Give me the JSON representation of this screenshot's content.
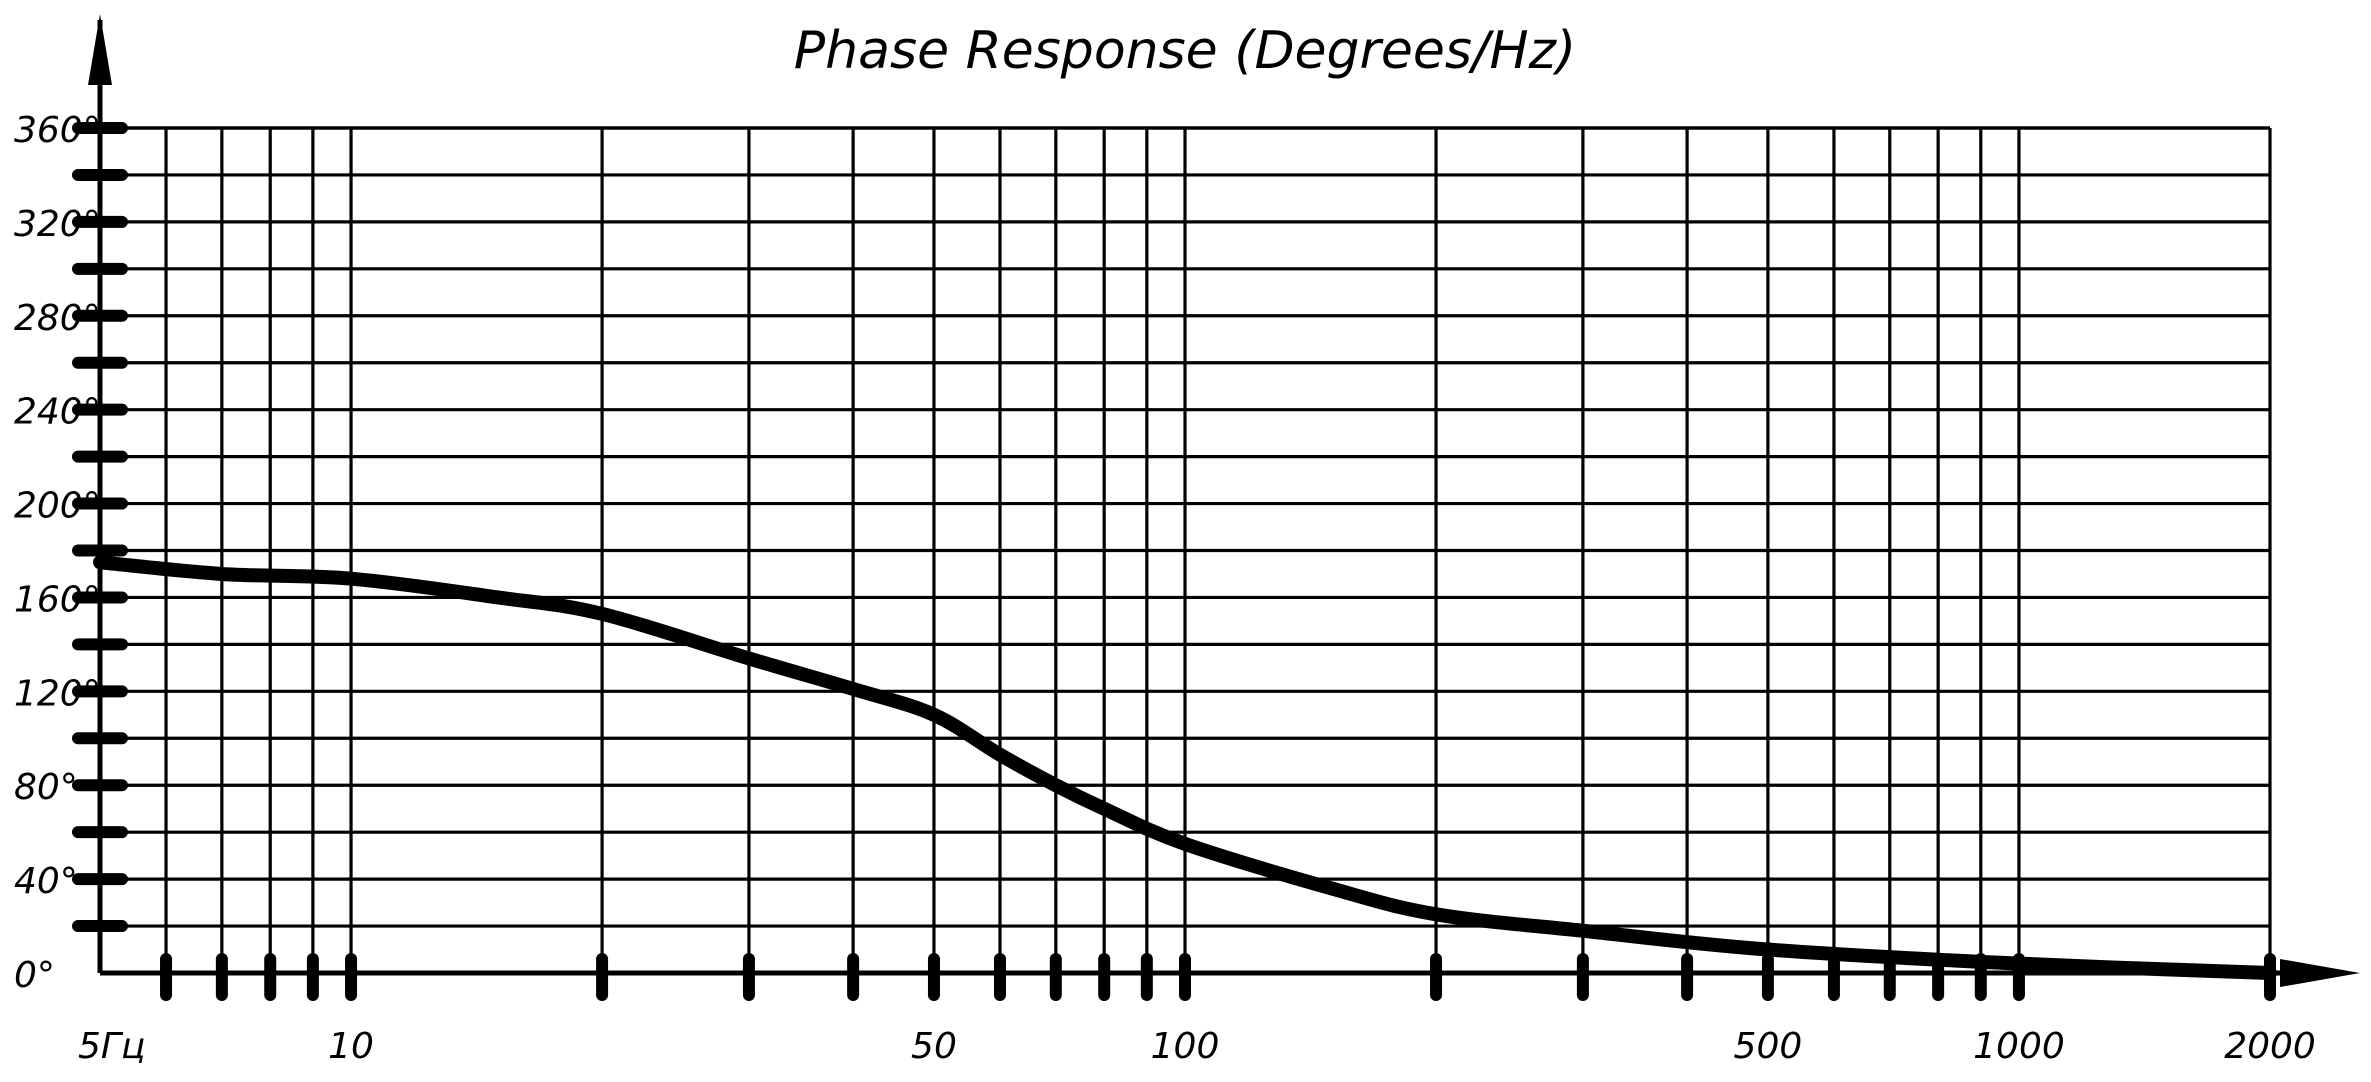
{
  "chart_data": {
    "type": "line",
    "title": "Phase Response (Degrees/Hz)",
    "xscale": "log",
    "xlim": [
      5,
      2000
    ],
    "ylim": [
      0,
      360
    ],
    "grid": true,
    "x_tick_labels": [
      {
        "value": 5,
        "label": "5Гц"
      },
      {
        "value": 10,
        "label": "10"
      },
      {
        "value": 50,
        "label": "50"
      },
      {
        "value": 100,
        "label": "100"
      },
      {
        "value": 500,
        "label": "500"
      },
      {
        "value": 1000,
        "label": "1000"
      },
      {
        "value": 2000,
        "label": "2000"
      }
    ],
    "x_gridlines": [
      6,
      7,
      8,
      9,
      10,
      20,
      30,
      40,
      50,
      60,
      70,
      80,
      90,
      100,
      200,
      300,
      400,
      500,
      600,
      700,
      800,
      900,
      1000
    ],
    "y_tick_labels": [
      {
        "value": 0,
        "label": "0°"
      },
      {
        "value": 40,
        "label": "40°"
      },
      {
        "value": 80,
        "label": "80°"
      },
      {
        "value": 120,
        "label": "120°"
      },
      {
        "value": 160,
        "label": "160°"
      },
      {
        "value": 200,
        "label": "200°"
      },
      {
        "value": 240,
        "label": "240°"
      },
      {
        "value": 280,
        "label": "280°"
      },
      {
        "value": 320,
        "label": "320°"
      },
      {
        "value": 360,
        "label": "360°"
      }
    ],
    "y_gridlines": [
      20,
      40,
      60,
      80,
      100,
      120,
      140,
      160,
      180,
      200,
      220,
      240,
      260,
      280,
      300,
      320,
      340,
      360
    ],
    "series": [
      {
        "x": [
          5,
          7,
          10,
          15,
          20,
          30,
          40,
          50,
          60,
          70,
          80,
          100,
          150,
          200,
          300,
          500,
          1000,
          2000
        ],
        "values": [
          175,
          170,
          168,
          160,
          153,
          134,
          121,
          110,
          93,
          80,
          70,
          55,
          36,
          25,
          18,
          10,
          4,
          0
        ]
      }
    ]
  }
}
